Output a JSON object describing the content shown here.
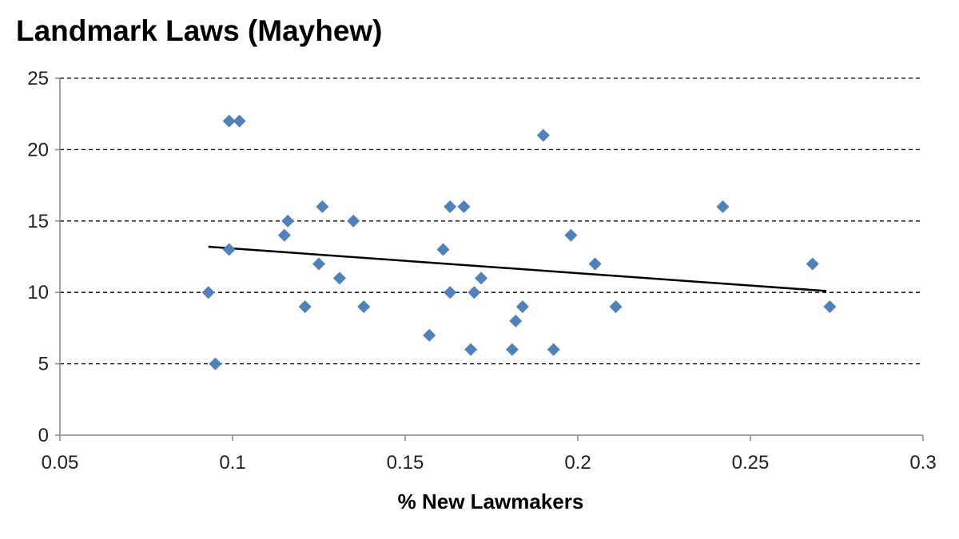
{
  "chart_data": {
    "type": "scatter",
    "title": "Landmark Laws (Mayhew)",
    "xlabel": "% New Lawmakers",
    "ylabel": "",
    "xlim": [
      0.05,
      0.3
    ],
    "ylim": [
      0,
      25
    ],
    "x_ticks": [
      "0.05",
      "0.1",
      "0.15",
      "0.2",
      "0.25",
      "0.3"
    ],
    "y_ticks": [
      "0",
      "5",
      "10",
      "15",
      "20",
      "25"
    ],
    "grid": "horizontal dashed",
    "marker": "diamond",
    "colors": {
      "points": "#4f81bd",
      "trendline": "#000000",
      "grid": "#000000",
      "axis": "#868686"
    },
    "series": [
      {
        "values": [
          {
            "x": 0.093,
            "y": 10
          },
          {
            "x": 0.095,
            "y": 5
          },
          {
            "x": 0.099,
            "y": 13
          },
          {
            "x": 0.099,
            "y": 22
          },
          {
            "x": 0.102,
            "y": 22
          },
          {
            "x": 0.115,
            "y": 14
          },
          {
            "x": 0.116,
            "y": 15
          },
          {
            "x": 0.121,
            "y": 9
          },
          {
            "x": 0.125,
            "y": 12
          },
          {
            "x": 0.126,
            "y": 16
          },
          {
            "x": 0.131,
            "y": 11
          },
          {
            "x": 0.135,
            "y": 15
          },
          {
            "x": 0.138,
            "y": 9
          },
          {
            "x": 0.157,
            "y": 7
          },
          {
            "x": 0.161,
            "y": 13
          },
          {
            "x": 0.163,
            "y": 10
          },
          {
            "x": 0.163,
            "y": 16
          },
          {
            "x": 0.167,
            "y": 16
          },
          {
            "x": 0.169,
            "y": 6
          },
          {
            "x": 0.17,
            "y": 10
          },
          {
            "x": 0.172,
            "y": 11
          },
          {
            "x": 0.181,
            "y": 6
          },
          {
            "x": 0.182,
            "y": 8
          },
          {
            "x": 0.184,
            "y": 9
          },
          {
            "x": 0.19,
            "y": 21
          },
          {
            "x": 0.193,
            "y": 6
          },
          {
            "x": 0.198,
            "y": 14
          },
          {
            "x": 0.205,
            "y": 12
          },
          {
            "x": 0.211,
            "y": 9
          },
          {
            "x": 0.242,
            "y": 16
          },
          {
            "x": 0.268,
            "y": 12
          },
          {
            "x": 0.273,
            "y": 9
          }
        ]
      }
    ],
    "trendline": {
      "x": [
        0.093,
        0.272
      ],
      "y": [
        13.2,
        10.1
      ]
    }
  }
}
